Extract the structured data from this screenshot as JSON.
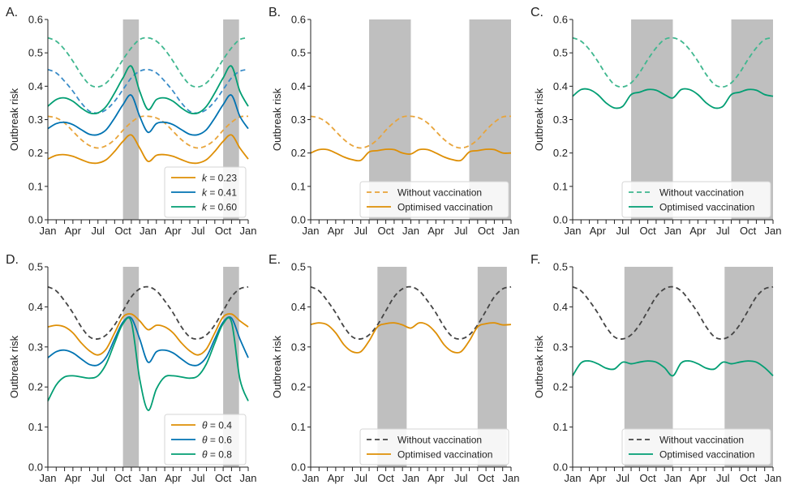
{
  "chart_data": [
    {
      "type": "line",
      "panel": "A.",
      "ylabel": "Outbreak risk",
      "xlabel": "",
      "ylim": [
        0,
        0.6
      ],
      "yticks": [
        "0.0",
        "0.1",
        "0.2",
        "0.3",
        "0.4",
        "0.5",
        "0.6"
      ],
      "xticks": [
        "Jan",
        "Apr",
        "Jul",
        "Oct",
        "Jan",
        "Apr",
        "Jul",
        "Oct",
        "Jan"
      ],
      "x_months": [
        0,
        24
      ],
      "shaded_months": [
        [
          9,
          10.9
        ],
        [
          21,
          22.9
        ]
      ],
      "legend": {
        "placement": "bottom-right",
        "entries": [
          {
            "label_prefix": "k",
            "label_suffix": " = 0.23",
            "color": "#de8f05",
            "style": "solid"
          },
          {
            "label_prefix": "k",
            "label_suffix": " = 0.41",
            "color": "#0173b2",
            "style": "solid"
          },
          {
            "label_prefix": "k",
            "label_suffix": " = 0.60",
            "color": "#029e73",
            "style": "solid"
          }
        ]
      },
      "series": [
        {
          "name": "k = 0.60 without vaccination",
          "color": "#3fb78f",
          "style": "dashed",
          "values": [
            0.545,
            0.535,
            0.51,
            0.475,
            0.435,
            0.405,
            0.398,
            0.41,
            0.44,
            0.48,
            0.515,
            0.54,
            0.545,
            0.535,
            0.51,
            0.475,
            0.435,
            0.405,
            0.398,
            0.41,
            0.44,
            0.48,
            0.515,
            0.54,
            0.545
          ]
        },
        {
          "name": "k = 0.41 without vaccination",
          "color": "#3a8cc8",
          "style": "dashed",
          "values": [
            0.45,
            0.44,
            0.415,
            0.385,
            0.35,
            0.325,
            0.32,
            0.33,
            0.355,
            0.39,
            0.425,
            0.445,
            0.45,
            0.44,
            0.415,
            0.385,
            0.35,
            0.325,
            0.32,
            0.33,
            0.355,
            0.39,
            0.425,
            0.445,
            0.45
          ]
        },
        {
          "name": "k = 0.23 without vaccination",
          "color": "#e8a43a",
          "style": "dashed",
          "values": [
            0.31,
            0.305,
            0.29,
            0.265,
            0.24,
            0.222,
            0.215,
            0.222,
            0.24,
            0.268,
            0.292,
            0.308,
            0.31,
            0.305,
            0.29,
            0.265,
            0.24,
            0.222,
            0.215,
            0.222,
            0.24,
            0.268,
            0.292,
            0.308,
            0.31
          ]
        },
        {
          "name": "k = 0.60",
          "color": "#029e73",
          "style": "solid",
          "values": [
            0.34,
            0.36,
            0.365,
            0.355,
            0.335,
            0.32,
            0.32,
            0.34,
            0.38,
            0.425,
            0.46,
            0.385,
            0.33,
            0.36,
            0.365,
            0.355,
            0.335,
            0.32,
            0.32,
            0.34,
            0.38,
            0.425,
            0.46,
            0.385,
            0.34
          ]
        },
        {
          "name": "k = 0.41",
          "color": "#0173b2",
          "style": "solid",
          "values": [
            0.273,
            0.288,
            0.292,
            0.285,
            0.27,
            0.256,
            0.255,
            0.27,
            0.305,
            0.345,
            0.373,
            0.31,
            0.262,
            0.288,
            0.292,
            0.285,
            0.27,
            0.256,
            0.255,
            0.27,
            0.305,
            0.345,
            0.373,
            0.31,
            0.273
          ]
        },
        {
          "name": "k = 0.23",
          "color": "#de8f05",
          "style": "solid",
          "values": [
            0.182,
            0.193,
            0.195,
            0.19,
            0.18,
            0.171,
            0.17,
            0.18,
            0.205,
            0.235,
            0.254,
            0.215,
            0.175,
            0.193,
            0.195,
            0.19,
            0.18,
            0.171,
            0.17,
            0.18,
            0.205,
            0.235,
            0.254,
            0.215,
            0.182
          ]
        }
      ]
    },
    {
      "type": "line",
      "panel": "B.",
      "ylabel": "Outbreak risk",
      "xlabel": "",
      "ylim": [
        0,
        0.6
      ],
      "yticks": [
        "0.0",
        "0.1",
        "0.2",
        "0.3",
        "0.4",
        "0.5",
        "0.6"
      ],
      "xticks": [
        "Jan",
        "Apr",
        "Jul",
        "Oct",
        "Jan",
        "Apr",
        "Jul",
        "Oct",
        "Jan"
      ],
      "x_months": [
        0,
        24
      ],
      "shaded_months": [
        [
          7,
          12
        ],
        [
          19,
          24
        ]
      ],
      "legend": {
        "placement": "bottom-right",
        "entries": [
          {
            "label": "Without vaccination",
            "color": "#e8a43a",
            "style": "dashed"
          },
          {
            "label": "Optimised vaccination",
            "color": "#de8f05",
            "style": "solid"
          }
        ]
      },
      "series": [
        {
          "name": "Without vaccination",
          "color": "#e8a43a",
          "style": "dashed",
          "values": [
            0.31,
            0.305,
            0.29,
            0.265,
            0.24,
            0.222,
            0.215,
            0.222,
            0.24,
            0.268,
            0.292,
            0.308,
            0.31,
            0.305,
            0.29,
            0.265,
            0.24,
            0.222,
            0.215,
            0.222,
            0.24,
            0.268,
            0.292,
            0.308,
            0.31
          ]
        },
        {
          "name": "Optimised vaccination",
          "color": "#de8f05",
          "style": "solid",
          "values": [
            0.2,
            0.21,
            0.21,
            0.2,
            0.188,
            0.18,
            0.178,
            0.203,
            0.207,
            0.211,
            0.21,
            0.2,
            0.197,
            0.21,
            0.21,
            0.2,
            0.188,
            0.18,
            0.178,
            0.203,
            0.207,
            0.211,
            0.21,
            0.2,
            0.2
          ]
        }
      ]
    },
    {
      "type": "line",
      "panel": "C.",
      "ylabel": "Outbreak risk",
      "xlabel": "",
      "ylim": [
        0,
        0.6
      ],
      "yticks": [
        "0.0",
        "0.1",
        "0.2",
        "0.3",
        "0.4",
        "0.5",
        "0.6"
      ],
      "xticks": [
        "Jan",
        "Apr",
        "Jul",
        "Oct",
        "Jan",
        "Apr",
        "Jul",
        "Oct",
        "Jan"
      ],
      "x_months": [
        0,
        24
      ],
      "shaded_months": [
        [
          7,
          12
        ],
        [
          19,
          24
        ]
      ],
      "legend": {
        "placement": "bottom-right",
        "entries": [
          {
            "label": "Without vaccination",
            "color": "#3fb78f",
            "style": "dashed"
          },
          {
            "label": "Optimised vaccination",
            "color": "#029e73",
            "style": "solid"
          }
        ]
      },
      "series": [
        {
          "name": "Without vaccination",
          "color": "#3fb78f",
          "style": "dashed",
          "values": [
            0.545,
            0.535,
            0.51,
            0.475,
            0.435,
            0.405,
            0.398,
            0.41,
            0.44,
            0.48,
            0.515,
            0.54,
            0.545,
            0.535,
            0.51,
            0.475,
            0.435,
            0.405,
            0.398,
            0.41,
            0.44,
            0.48,
            0.515,
            0.54,
            0.545
          ]
        },
        {
          "name": "Optimised vaccination",
          "color": "#029e73",
          "style": "solid",
          "values": [
            0.37,
            0.39,
            0.39,
            0.375,
            0.35,
            0.335,
            0.34,
            0.375,
            0.382,
            0.39,
            0.388,
            0.375,
            0.365,
            0.39,
            0.39,
            0.375,
            0.35,
            0.335,
            0.34,
            0.375,
            0.382,
            0.39,
            0.388,
            0.375,
            0.37
          ]
        }
      ]
    },
    {
      "type": "line",
      "panel": "D.",
      "ylabel": "Outbreak risk",
      "xlabel": "",
      "ylim": [
        0,
        0.5
      ],
      "yticks": [
        "0.0",
        "0.1",
        "0.2",
        "0.3",
        "0.4",
        "0.5"
      ],
      "xticks": [
        "Jan",
        "Apr",
        "Jul",
        "Oct",
        "Jan",
        "Apr",
        "Jul",
        "Oct",
        "Jan"
      ],
      "x_months": [
        0,
        24
      ],
      "shaded_months": [
        [
          9,
          10.9
        ],
        [
          21,
          22.9
        ]
      ],
      "legend": {
        "placement": "bottom-right",
        "entries": [
          {
            "label_prefix": "θ",
            "label_suffix": " = 0.4",
            "color": "#de8f05",
            "style": "solid"
          },
          {
            "label_prefix": "θ",
            "label_suffix": " = 0.6",
            "color": "#0173b2",
            "style": "solid"
          },
          {
            "label_prefix": "θ",
            "label_suffix": " = 0.8",
            "color": "#029e73",
            "style": "solid"
          }
        ]
      },
      "series": [
        {
          "name": "Without vaccination",
          "color": "#444444",
          "style": "dashed",
          "values": [
            0.45,
            0.44,
            0.415,
            0.385,
            0.35,
            0.325,
            0.32,
            0.33,
            0.355,
            0.39,
            0.425,
            0.445,
            0.45,
            0.44,
            0.415,
            0.385,
            0.35,
            0.325,
            0.32,
            0.33,
            0.355,
            0.39,
            0.425,
            0.445,
            0.45
          ]
        },
        {
          "name": "θ = 0.4",
          "color": "#de8f05",
          "style": "solid",
          "values": [
            0.35,
            0.354,
            0.35,
            0.335,
            0.31,
            0.29,
            0.28,
            0.295,
            0.335,
            0.375,
            0.382,
            0.365,
            0.343,
            0.354,
            0.35,
            0.335,
            0.31,
            0.29,
            0.28,
            0.295,
            0.335,
            0.375,
            0.382,
            0.365,
            0.35
          ]
        },
        {
          "name": "θ = 0.6",
          "color": "#0173b2",
          "style": "solid",
          "values": [
            0.273,
            0.288,
            0.292,
            0.285,
            0.27,
            0.256,
            0.255,
            0.275,
            0.32,
            0.362,
            0.372,
            0.32,
            0.262,
            0.288,
            0.292,
            0.285,
            0.27,
            0.256,
            0.255,
            0.275,
            0.32,
            0.362,
            0.372,
            0.32,
            0.273
          ]
        },
        {
          "name": "θ = 0.8",
          "color": "#029e73",
          "style": "solid",
          "values": [
            0.165,
            0.205,
            0.225,
            0.228,
            0.225,
            0.222,
            0.228,
            0.258,
            0.31,
            0.358,
            0.362,
            0.22,
            0.142,
            0.195,
            0.225,
            0.228,
            0.225,
            0.222,
            0.228,
            0.258,
            0.31,
            0.358,
            0.362,
            0.22,
            0.165
          ]
        }
      ]
    },
    {
      "type": "line",
      "panel": "E.",
      "ylabel": "Outbreak risk",
      "xlabel": "",
      "ylim": [
        0,
        0.5
      ],
      "yticks": [
        "0.0",
        "0.1",
        "0.2",
        "0.3",
        "0.4",
        "0.5"
      ],
      "xticks": [
        "Jan",
        "Apr",
        "Jul",
        "Oct",
        "Jan",
        "Apr",
        "Jul",
        "Oct",
        "Jan"
      ],
      "x_months": [
        0,
        24
      ],
      "shaded_months": [
        [
          8,
          11.5
        ],
        [
          20,
          23.5
        ]
      ],
      "legend": {
        "placement": "bottom-right",
        "entries": [
          {
            "label": "Without vaccination",
            "color": "#444444",
            "style": "dashed"
          },
          {
            "label": "Optimised vaccination",
            "color": "#de8f05",
            "style": "solid"
          }
        ]
      },
      "series": [
        {
          "name": "Without vaccination",
          "color": "#444444",
          "style": "dashed",
          "values": [
            0.45,
            0.44,
            0.415,
            0.385,
            0.35,
            0.325,
            0.32,
            0.33,
            0.355,
            0.39,
            0.425,
            0.445,
            0.45,
            0.44,
            0.415,
            0.385,
            0.35,
            0.325,
            0.32,
            0.33,
            0.355,
            0.39,
            0.425,
            0.445,
            0.45
          ]
        },
        {
          "name": "Optimised vaccination",
          "color": "#de8f05",
          "style": "solid",
          "values": [
            0.356,
            0.36,
            0.355,
            0.335,
            0.305,
            0.288,
            0.288,
            0.315,
            0.35,
            0.358,
            0.36,
            0.355,
            0.347,
            0.36,
            0.355,
            0.335,
            0.305,
            0.288,
            0.288,
            0.315,
            0.35,
            0.358,
            0.36,
            0.355,
            0.356
          ]
        }
      ]
    },
    {
      "type": "line",
      "panel": "F.",
      "ylabel": "Outbreak risk",
      "xlabel": "",
      "ylim": [
        0,
        0.5
      ],
      "yticks": [
        "0.0",
        "0.1",
        "0.2",
        "0.3",
        "0.4",
        "0.5"
      ],
      "xticks": [
        "Jan",
        "Apr",
        "Jul",
        "Oct",
        "Jan",
        "Apr",
        "Jul",
        "Oct",
        "Jan"
      ],
      "x_months": [
        0,
        24
      ],
      "shaded_months": [
        [
          6.2,
          12
        ],
        [
          18.2,
          24
        ]
      ],
      "legend": {
        "placement": "bottom-right",
        "entries": [
          {
            "label": "Without vaccination",
            "color": "#444444",
            "style": "dashed"
          },
          {
            "label": "Optimised vaccination",
            "color": "#029e73",
            "style": "solid"
          }
        ]
      },
      "series": [
        {
          "name": "Without vaccination",
          "color": "#444444",
          "style": "dashed",
          "values": [
            0.45,
            0.44,
            0.415,
            0.385,
            0.35,
            0.325,
            0.32,
            0.33,
            0.355,
            0.39,
            0.425,
            0.445,
            0.45,
            0.44,
            0.415,
            0.385,
            0.35,
            0.325,
            0.32,
            0.33,
            0.355,
            0.39,
            0.425,
            0.445,
            0.45
          ]
        },
        {
          "name": "Optimised vaccination",
          "color": "#029e73",
          "style": "solid",
          "values": [
            0.228,
            0.26,
            0.265,
            0.258,
            0.247,
            0.245,
            0.262,
            0.258,
            0.262,
            0.265,
            0.262,
            0.248,
            0.228,
            0.26,
            0.265,
            0.258,
            0.247,
            0.245,
            0.262,
            0.258,
            0.262,
            0.265,
            0.262,
            0.248,
            0.228
          ]
        }
      ]
    }
  ]
}
